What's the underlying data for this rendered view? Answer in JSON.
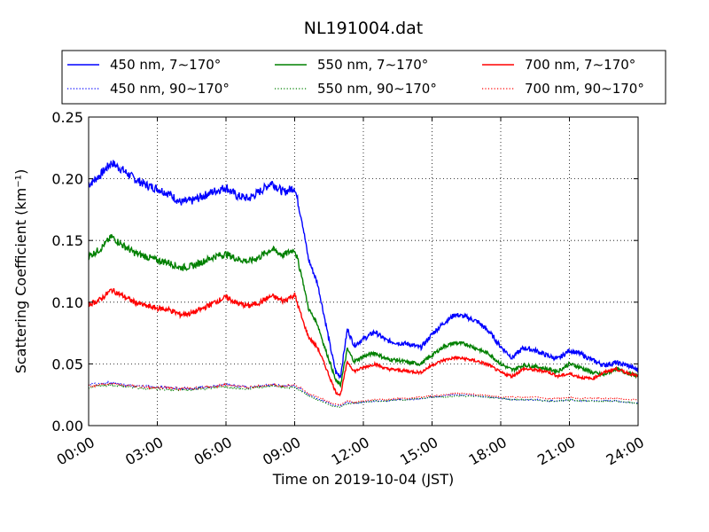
{
  "chart_data": {
    "type": "line",
    "title": "NL191004.dat",
    "xlabel": "Time on 2019-10-04 (JST)",
    "ylabel": "Scattering Coefficient (km⁻¹)",
    "xlim": [
      0,
      24
    ],
    "ylim": [
      0,
      0.25
    ],
    "x_unit": "hours",
    "x_ticks": [
      0,
      3,
      6,
      9,
      12,
      15,
      18,
      21,
      24
    ],
    "x_tick_labels": [
      "00:00",
      "03:00",
      "06:00",
      "09:00",
      "12:00",
      "15:00",
      "18:00",
      "21:00",
      "24:00"
    ],
    "y_ticks": [
      0,
      0.05,
      0.1,
      0.15,
      0.2,
      0.25
    ],
    "y_tick_labels": [
      "0.00",
      "0.05",
      "0.10",
      "0.15",
      "0.20",
      "0.25"
    ],
    "grid": true,
    "legend_position": "top (above plot)",
    "x": [
      0,
      0.5,
      1,
      1.5,
      2,
      2.5,
      3,
      3.5,
      4,
      4.5,
      5,
      5.5,
      6,
      6.5,
      7,
      7.5,
      8,
      8.5,
      9,
      9.3,
      9.6,
      10,
      10.3,
      10.6,
      10.8,
      11,
      11.3,
      11.6,
      12,
      12.5,
      13,
      13.5,
      14,
      14.5,
      15,
      15.5,
      16,
      16.5,
      17,
      17.5,
      18,
      18.5,
      19,
      19.5,
      20,
      20.5,
      21,
      21.5,
      22,
      22.5,
      23,
      23.5,
      24
    ],
    "series": [
      {
        "name": "450 nm, 7∼170°",
        "color": "#0000ff",
        "style": "solid",
        "values": [
          0.195,
          0.203,
          0.213,
          0.207,
          0.2,
          0.195,
          0.192,
          0.188,
          0.181,
          0.182,
          0.186,
          0.19,
          0.193,
          0.186,
          0.184,
          0.19,
          0.197,
          0.189,
          0.193,
          0.168,
          0.135,
          0.115,
          0.088,
          0.06,
          0.043,
          0.04,
          0.078,
          0.065,
          0.07,
          0.076,
          0.069,
          0.067,
          0.066,
          0.063,
          0.074,
          0.083,
          0.09,
          0.088,
          0.084,
          0.076,
          0.064,
          0.055,
          0.063,
          0.061,
          0.057,
          0.054,
          0.061,
          0.058,
          0.053,
          0.049,
          0.051,
          0.049,
          0.045
        ]
      },
      {
        "name": "550 nm, 7∼170°",
        "color": "#008000",
        "style": "solid",
        "values": [
          0.137,
          0.143,
          0.153,
          0.146,
          0.14,
          0.137,
          0.134,
          0.132,
          0.128,
          0.129,
          0.133,
          0.137,
          0.139,
          0.135,
          0.133,
          0.137,
          0.143,
          0.138,
          0.143,
          0.122,
          0.095,
          0.082,
          0.064,
          0.048,
          0.036,
          0.033,
          0.062,
          0.052,
          0.056,
          0.059,
          0.054,
          0.053,
          0.051,
          0.05,
          0.057,
          0.064,
          0.067,
          0.066,
          0.062,
          0.058,
          0.05,
          0.045,
          0.049,
          0.048,
          0.046,
          0.044,
          0.05,
          0.047,
          0.043,
          0.041,
          0.046,
          0.043,
          0.04
        ]
      },
      {
        "name": "700 nm, 7∼170°",
        "color": "#ff0000",
        "style": "solid",
        "values": [
          0.098,
          0.102,
          0.11,
          0.105,
          0.1,
          0.097,
          0.095,
          0.094,
          0.09,
          0.091,
          0.095,
          0.1,
          0.104,
          0.099,
          0.097,
          0.1,
          0.105,
          0.101,
          0.106,
          0.088,
          0.072,
          0.063,
          0.05,
          0.036,
          0.027,
          0.025,
          0.052,
          0.044,
          0.047,
          0.05,
          0.046,
          0.045,
          0.044,
          0.043,
          0.049,
          0.053,
          0.055,
          0.054,
          0.052,
          0.049,
          0.043,
          0.04,
          0.046,
          0.045,
          0.044,
          0.04,
          0.042,
          0.039,
          0.038,
          0.043,
          0.046,
          0.043,
          0.04
        ]
      },
      {
        "name": "450 nm, 90∼170°",
        "color": "#0000ff",
        "style": "dotted",
        "values": [
          0.033,
          0.034,
          0.035,
          0.033,
          0.032,
          0.032,
          0.031,
          0.031,
          0.03,
          0.03,
          0.031,
          0.032,
          0.033,
          0.032,
          0.031,
          0.032,
          0.033,
          0.032,
          0.032,
          0.029,
          0.025,
          0.022,
          0.02,
          0.017,
          0.016,
          0.016,
          0.019,
          0.018,
          0.019,
          0.02,
          0.02,
          0.021,
          0.021,
          0.022,
          0.023,
          0.024,
          0.025,
          0.025,
          0.024,
          0.023,
          0.022,
          0.021,
          0.021,
          0.021,
          0.02,
          0.02,
          0.021,
          0.02,
          0.02,
          0.02,
          0.02,
          0.019,
          0.018
        ]
      },
      {
        "name": "550 nm, 90∼170°",
        "color": "#008000",
        "style": "dotted",
        "values": [
          0.031,
          0.032,
          0.033,
          0.032,
          0.031,
          0.03,
          0.03,
          0.029,
          0.029,
          0.029,
          0.03,
          0.031,
          0.031,
          0.03,
          0.03,
          0.031,
          0.032,
          0.031,
          0.031,
          0.028,
          0.024,
          0.021,
          0.019,
          0.016,
          0.015,
          0.015,
          0.018,
          0.018,
          0.019,
          0.02,
          0.02,
          0.021,
          0.021,
          0.022,
          0.023,
          0.023,
          0.024,
          0.024,
          0.024,
          0.023,
          0.022,
          0.021,
          0.021,
          0.021,
          0.02,
          0.02,
          0.021,
          0.02,
          0.02,
          0.02,
          0.02,
          0.019,
          0.018
        ]
      },
      {
        "name": "700 nm, 90∼170°",
        "color": "#ff0000",
        "style": "dotted",
        "values": [
          0.032,
          0.033,
          0.034,
          0.033,
          0.032,
          0.031,
          0.031,
          0.031,
          0.03,
          0.03,
          0.031,
          0.032,
          0.033,
          0.032,
          0.031,
          0.032,
          0.033,
          0.032,
          0.033,
          0.03,
          0.026,
          0.023,
          0.021,
          0.018,
          0.017,
          0.017,
          0.02,
          0.019,
          0.02,
          0.021,
          0.021,
          0.022,
          0.022,
          0.023,
          0.024,
          0.025,
          0.026,
          0.026,
          0.025,
          0.024,
          0.023,
          0.023,
          0.023,
          0.023,
          0.022,
          0.022,
          0.023,
          0.022,
          0.022,
          0.022,
          0.022,
          0.021,
          0.021
        ]
      }
    ],
    "legend": [
      [
        "450 nm, 7∼170°",
        "550 nm, 7∼170°",
        "700 nm, 7∼170°"
      ],
      [
        "450 nm, 90∼170°",
        "550 nm, 90∼170°",
        "700 nm, 90∼170°"
      ]
    ]
  }
}
